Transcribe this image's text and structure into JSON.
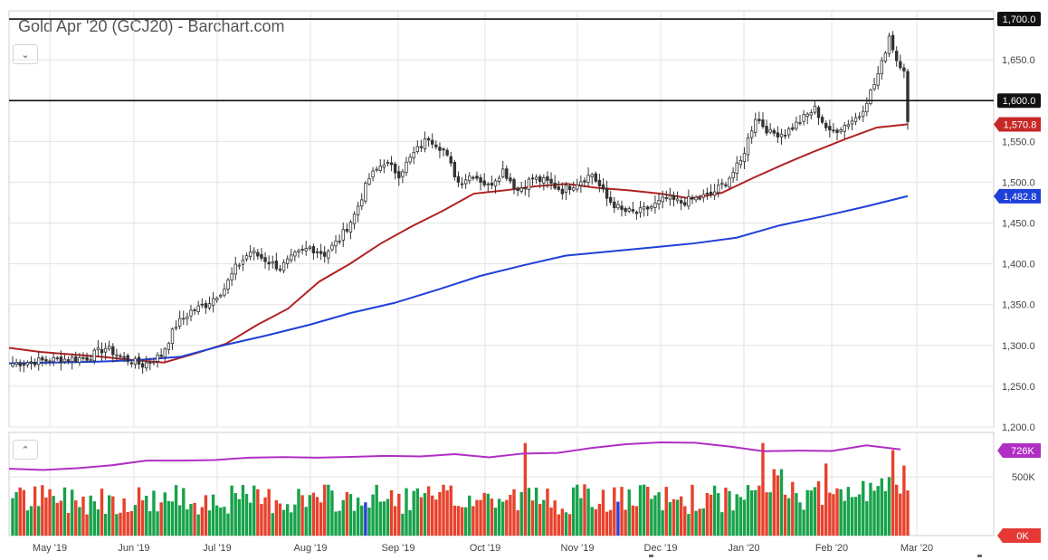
{
  "title": "Gold Apr '20 (GCJ20) - Barchart.com",
  "chart_data": {
    "type": "candlestick",
    "price_axis": {
      "ylim": [
        1200,
        1710
      ],
      "ticks": [
        "1,200.0",
        "1,250.0",
        "1,300.0",
        "1,350.0",
        "1,400.0",
        "1,450.0",
        "1,500.0",
        "1,550.0",
        "1,650.0"
      ],
      "tick_values": [
        1200,
        1250,
        1300,
        1350,
        1400,
        1450,
        1500,
        1550,
        1650
      ]
    },
    "horizontal_lines": [
      {
        "value": 1700,
        "label": "1,700.0",
        "color": "#111111"
      },
      {
        "value": 1600,
        "label": "1,600.0",
        "color": "#111111"
      }
    ],
    "markers": [
      {
        "label": "1,570.8",
        "value": 1570.8,
        "color": "#c62828"
      },
      {
        "label": "1,482.8",
        "value": 1482.8,
        "color": "#1e40d8"
      }
    ],
    "x_axis": {
      "labels": [
        "May '19",
        "Jun '19",
        "Jul '19",
        "Aug '19",
        "Sep '19",
        "Oct '19",
        "Nov '19",
        "Dec '19",
        "Jan '20",
        "Feb '20",
        "Mar '20"
      ]
    },
    "price_anchors": [
      [
        0,
        1278
      ],
      [
        10,
        1282
      ],
      [
        20,
        1285
      ],
      [
        25,
        1297
      ],
      [
        30,
        1284
      ],
      [
        35,
        1276
      ],
      [
        40,
        1288
      ],
      [
        44,
        1325
      ],
      [
        48,
        1342
      ],
      [
        52,
        1350
      ],
      [
        57,
        1370
      ],
      [
        60,
        1395
      ],
      [
        64,
        1415
      ],
      [
        68,
        1405
      ],
      [
        72,
        1395
      ],
      [
        76,
        1410
      ],
      [
        80,
        1420
      ],
      [
        84,
        1412
      ],
      [
        88,
        1430
      ],
      [
        92,
        1460
      ],
      [
        96,
        1505
      ],
      [
        100,
        1525
      ],
      [
        104,
        1510
      ],
      [
        108,
        1535
      ],
      [
        112,
        1555
      ],
      [
        116,
        1540
      ],
      [
        120,
        1500
      ],
      [
        124,
        1510
      ],
      [
        128,
        1495
      ],
      [
        132,
        1515
      ],
      [
        136,
        1490
      ],
      [
        140,
        1505
      ],
      [
        144,
        1500
      ],
      [
        148,
        1490
      ],
      [
        152,
        1500
      ],
      [
        156,
        1510
      ],
      [
        160,
        1480
      ],
      [
        164,
        1465
      ],
      [
        168,
        1462
      ],
      [
        172,
        1470
      ],
      [
        176,
        1480
      ],
      [
        180,
        1475
      ],
      [
        184,
        1480
      ],
      [
        188,
        1485
      ],
      [
        192,
        1500
      ],
      [
        196,
        1525
      ],
      [
        200,
        1580
      ],
      [
        204,
        1560
      ],
      [
        208,
        1560
      ],
      [
        212,
        1575
      ],
      [
        216,
        1590
      ],
      [
        220,
        1560
      ],
      [
        224,
        1570
      ],
      [
        228,
        1582
      ],
      [
        232,
        1620
      ],
      [
        234,
        1645
      ],
      [
        236,
        1680
      ],
      [
        238,
        1650
      ],
      [
        240,
        1640
      ],
      [
        241,
        1572
      ]
    ],
    "sma_red": {
      "name": "",
      "values": [
        1297,
        1292,
        1289,
        1286,
        1282,
        1279,
        1290,
        1302,
        1325,
        1345,
        1378,
        1400,
        1425,
        1446,
        1465,
        1486,
        1490,
        1495,
        1498,
        1493,
        1490,
        1486,
        1480,
        1487,
        1505,
        1522,
        1538,
        1553,
        1567,
        1571
      ]
    },
    "sma_blue": {
      "name": "",
      "values": [
        1278,
        1279,
        1280,
        1282,
        1286,
        1300,
        1312,
        1325,
        1340,
        1352,
        1368,
        1385,
        1398,
        1410,
        1415,
        1420,
        1425,
        1432,
        1447,
        1458,
        1470,
        1483
      ]
    },
    "volume_axis": {
      "ylim": [
        0,
        880
      ],
      "ticks": [
        "500K"
      ],
      "tick_values": [
        500
      ],
      "markers": [
        {
          "label": "726K",
          "value": 726,
          "color": "#b02ec4"
        },
        {
          "label": "0K",
          "value": 0,
          "color": "#e53935"
        }
      ],
      "avg_line_color": "#b02ec4"
    },
    "colors": {
      "up": "#17a24a",
      "down": "#e8412c",
      "neutral": "#2b3fd6",
      "candle": "#333333",
      "grid": "#e3e3e3",
      "axis_text": "#444444"
    }
  }
}
